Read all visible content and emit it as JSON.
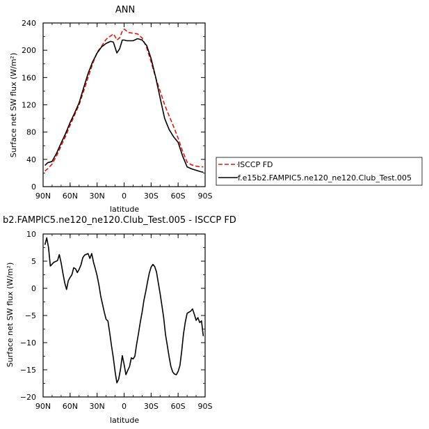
{
  "chart_data": [
    {
      "type": "line",
      "title": "ANN",
      "xlabel": "latitude",
      "ylabel": "Surface net SW flux (W/m²)",
      "xlim": [
        90,
        -90
      ],
      "ylim": [
        0,
        240
      ],
      "xticks": [
        90,
        60,
        30,
        0,
        -30,
        -60,
        -90
      ],
      "xtick_labels": [
        "90N",
        "60N",
        "30N",
        "0",
        "30S",
        "60S",
        "90S"
      ],
      "yticks": [
        0,
        40,
        80,
        120,
        160,
        200,
        240
      ],
      "ytick_labels": [
        "0",
        "40",
        "80",
        "120",
        "160",
        "200",
        "240"
      ],
      "legend_position": "right",
      "series": [
        {
          "name": "ISCCP FD",
          "color": "#e8120c",
          "dash": "dashed",
          "x": [
            88,
            85,
            80,
            75,
            70,
            65,
            60,
            55,
            50,
            45,
            40,
            35,
            30,
            25,
            20,
            15,
            12,
            10,
            8,
            5,
            2,
            0,
            -3,
            -5,
            -10,
            -15,
            -20,
            -25,
            -30,
            -35,
            -40,
            -45,
            -50,
            -55,
            -60,
            -65,
            -70,
            -75,
            -80,
            -85,
            -88
          ],
          "y": [
            23,
            26,
            33,
            45,
            60,
            74,
            90,
            105,
            120,
            140,
            160,
            180,
            197,
            206,
            216,
            221,
            224,
            220,
            215,
            218,
            228,
            231,
            228,
            226,
            225,
            224,
            218,
            204,
            183,
            160,
            140,
            120,
            104,
            88,
            71,
            52,
            36,
            32,
            30,
            29,
            29
          ]
        },
        {
          "name": "f.e15b2.FAMPIC5.ne120_ne120.Club_Test.005",
          "color": "#000000",
          "dash": "solid",
          "x": [
            88,
            85,
            80,
            75,
            70,
            65,
            60,
            55,
            50,
            45,
            40,
            35,
            30,
            25,
            20,
            15,
            12,
            10,
            8,
            5,
            2,
            0,
            -3,
            -5,
            -10,
            -15,
            -20,
            -25,
            -30,
            -35,
            -40,
            -45,
            -50,
            -55,
            -60,
            -65,
            -70,
            -75,
            -80,
            -85,
            -88
          ],
          "y": [
            31,
            35,
            37,
            49,
            64,
            78,
            94,
            108,
            123,
            145,
            166,
            183,
            196,
            205,
            210,
            213,
            212,
            204,
            196,
            202,
            215,
            215,
            214,
            214,
            214,
            217,
            215,
            207,
            188,
            161,
            130,
            100,
            84,
            73,
            65,
            45,
            29,
            26,
            24,
            22,
            21
          ]
        }
      ]
    },
    {
      "type": "line",
      "title": "b2.FAMPIC5.ne120_ne120.Club_Test.005 - ISCCP FD",
      "xlabel": "latitude",
      "ylabel": "Surface net SW flux (W/m²)",
      "xlim": [
        90,
        -90
      ],
      "ylim": [
        -20,
        10
      ],
      "xticks": [
        90,
        60,
        30,
        0,
        -30,
        -60,
        -90
      ],
      "xtick_labels": [
        "90N",
        "60N",
        "30N",
        "0",
        "30S",
        "60S",
        "90S"
      ],
      "yticks": [
        -20,
        -15,
        -10,
        -5,
        0,
        5,
        10
      ],
      "ytick_labels": [
        "−20",
        "−15",
        "−10",
        "−5",
        "0",
        "5",
        "10"
      ],
      "series": [
        {
          "color": "#000000",
          "x": [
            88,
            86,
            84,
            82,
            78,
            74,
            72,
            70,
            68,
            66,
            64,
            62,
            60,
            58,
            56,
            54,
            52,
            50,
            48,
            46,
            44,
            40,
            38,
            36,
            34,
            32,
            30,
            28,
            26,
            24,
            22,
            20,
            18,
            16,
            14,
            12,
            10,
            8,
            6,
            4,
            2,
            0,
            -2,
            -4,
            -6,
            -8,
            -10,
            -12,
            -14,
            -16,
            -18,
            -20,
            -22,
            -24,
            -26,
            -28,
            -30,
            -32,
            -34,
            -36,
            -38,
            -40,
            -42,
            -44,
            -46,
            -48,
            -50,
            -52,
            -54,
            -56,
            -58,
            -60,
            -62,
            -64,
            -66,
            -68,
            -70,
            -72,
            -74,
            -76,
            -78,
            -80,
            -82,
            -84,
            -86,
            -88
          ],
          "y": [
            8,
            9.3,
            7.5,
            4.1,
            4.8,
            5.1,
            6.2,
            4.7,
            2.8,
            1.0,
            -0.2,
            1.4,
            2.0,
            2.5,
            3.8,
            3.6,
            2.9,
            3.5,
            4.3,
            5.6,
            6.1,
            6.4,
            5.5,
            6.4,
            4.8,
            3.6,
            2.3,
            0.6,
            -1.4,
            -2.9,
            -4.4,
            -5.7,
            -6.0,
            -8.2,
            -10.6,
            -12.8,
            -15.4,
            -17.4,
            -16.7,
            -14.9,
            -12.4,
            -14.0,
            -15.9,
            -15.1,
            -14.4,
            -12.8,
            -13.0,
            -12.5,
            -10.2,
            -8.3,
            -6.2,
            -4.4,
            -2.2,
            -0.6,
            1.2,
            2.8,
            3.9,
            4.4,
            4.0,
            3.0,
            1.0,
            -1.0,
            -3.2,
            -5.5,
            -8.5,
            -10.5,
            -12.6,
            -14.4,
            -15.4,
            -15.8,
            -15.9,
            -15.3,
            -14.2,
            -11.6,
            -8.4,
            -6.2,
            -4.6,
            -4.4,
            -4.2,
            -3.8,
            -4.8,
            -5.9,
            -5.4,
            -6.3,
            -6.0,
            -8.8
          ]
        }
      ]
    }
  ]
}
